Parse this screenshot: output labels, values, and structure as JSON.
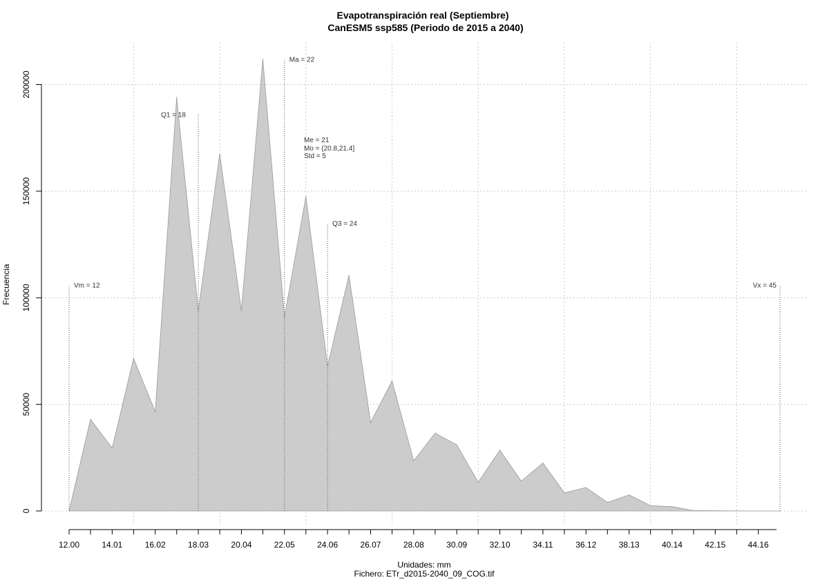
{
  "chart_data": {
    "type": "area",
    "title": "Evapotranspiración real (Septiembre)",
    "subtitle": "CanESM5 ssp585 (Periodo de 2015 a 2040)",
    "xlabel": "Unidades: mm",
    "ylabel": "Frecuencia",
    "caption": "Fichero: ETr_d2015-2040_09_COG.tif",
    "xlim": [
      12.0,
      45.17
    ],
    "ylim": [
      0,
      210000
    ],
    "grid": true,
    "x_tick_labels": [
      "12.00",
      "14.01",
      "16.02",
      "18.03",
      "20.04",
      "22.05",
      "24.06",
      "26.07",
      "28.08",
      "30.09",
      "32.10",
      "34.11",
      "36.12",
      "38.13",
      "40.14",
      "42.15",
      "44.16"
    ],
    "x_tick_values": [
      12.0,
      14.01,
      16.02,
      18.03,
      20.04,
      22.05,
      24.06,
      26.07,
      28.08,
      30.09,
      32.1,
      34.11,
      36.12,
      38.13,
      40.14,
      42.15,
      44.16
    ],
    "y_tick_labels": [
      "0",
      "50000",
      "100000",
      "150000",
      "200000"
    ],
    "y_tick_values": [
      0,
      50000,
      100000,
      150000,
      200000
    ],
    "x": [
      12.0,
      13.0,
      14.01,
      15.01,
      16.02,
      17.02,
      18.03,
      19.03,
      20.04,
      21.04,
      22.05,
      23.05,
      24.06,
      25.06,
      26.07,
      27.07,
      28.08,
      29.08,
      30.09,
      31.09,
      32.1,
      33.1,
      34.11,
      35.11,
      36.12,
      37.12,
      38.13,
      39.13,
      40.14,
      41.14,
      42.15,
      43.15,
      44.16,
      45.17
    ],
    "values": [
      0,
      43000,
      29500,
      71500,
      46500,
      194000,
      94000,
      167500,
      94000,
      212000,
      91000,
      147500,
      68000,
      110500,
      41500,
      61000,
      23500,
      36500,
      31000,
      13500,
      28500,
      14000,
      22500,
      8500,
      11000,
      4000,
      7500,
      2500,
      2000,
      200,
      100,
      50,
      0,
      0
    ],
    "fill_color": "#cccccc",
    "line_color": "#999999",
    "markers": [
      {
        "label": "Vm = 12",
        "x": 12.0,
        "height": 106000
      },
      {
        "label": "Q1 = 18",
        "x": 18.03,
        "height": 186000
      },
      {
        "label": "Ma = 22",
        "x": 22.05,
        "height": 212000
      },
      {
        "label": "Q3 = 24",
        "x": 24.06,
        "height": 135000
      },
      {
        "label": "Vx = 45",
        "x": 45.17,
        "height": 106000
      }
    ],
    "stats": [
      "Me = 21",
      "Mo = (20.8,21.4]",
      "Std = 5"
    ]
  }
}
